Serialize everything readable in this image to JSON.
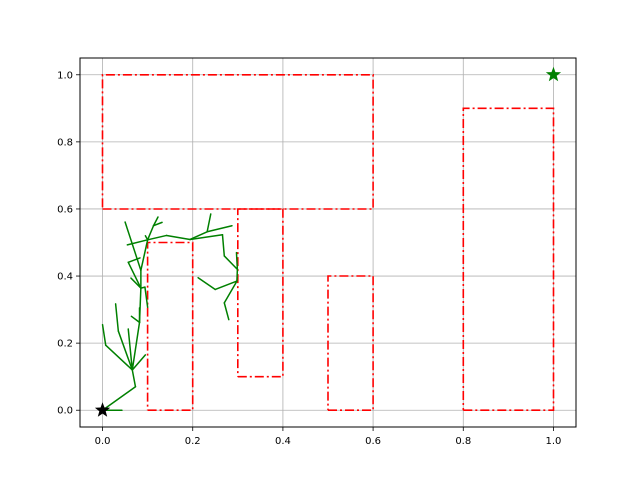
{
  "chart_data": {
    "type": "line",
    "title": "",
    "xlabel": "",
    "ylabel": "",
    "xlim": [
      -0.05,
      1.05
    ],
    "ylim": [
      -0.05,
      1.05
    ],
    "grid": true,
    "x_ticks": [
      "0.0",
      "0.2",
      "0.4",
      "0.6",
      "0.8",
      "1.0"
    ],
    "y_ticks": [
      "0.0",
      "0.2",
      "0.4",
      "0.6",
      "0.8",
      "1.0"
    ],
    "x_tick_values": [
      0,
      0.2,
      0.4,
      0.6,
      0.8,
      1.0
    ],
    "y_tick_values": [
      0,
      0.2,
      0.4,
      0.6,
      0.8,
      1.0
    ],
    "obstacle_color": "#ff0000",
    "tree_color": "#008000",
    "start_color": "#000000",
    "goal_color": "#008000",
    "start": [
      0.0,
      0.0
    ],
    "goal": [
      1.0,
      1.0
    ],
    "obstacles": [
      [
        [
          0.0,
          0.6
        ],
        [
          0.6,
          0.6
        ],
        [
          0.6,
          1.0
        ],
        [
          0.0,
          1.0
        ],
        [
          0.0,
          0.6
        ]
      ],
      [
        [
          0.1,
          0.0
        ],
        [
          0.2,
          0.0
        ],
        [
          0.2,
          0.5
        ],
        [
          0.1,
          0.5
        ],
        [
          0.1,
          0.0
        ]
      ],
      [
        [
          0.3,
          0.1
        ],
        [
          0.4,
          0.1
        ],
        [
          0.4,
          0.6
        ],
        [
          0.3,
          0.6
        ],
        [
          0.3,
          0.1
        ]
      ],
      [
        [
          0.5,
          0.0
        ],
        [
          0.6,
          0.0
        ],
        [
          0.6,
          0.4
        ],
        [
          0.5,
          0.4
        ],
        [
          0.5,
          0.0
        ]
      ],
      [
        [
          0.8,
          0.0
        ],
        [
          1.0,
          0.0
        ],
        [
          1.0,
          0.9
        ],
        [
          0.8,
          0.9
        ],
        [
          0.8,
          0.0
        ]
      ]
    ],
    "tree_edges": [
      [
        [
          0.0,
          0.0
        ],
        [
          0.043,
          0.0
        ]
      ],
      [
        [
          0.0,
          0.0
        ],
        [
          0.073,
          0.07
        ]
      ],
      [
        [
          0.073,
          0.07
        ],
        [
          0.066,
          0.12
        ]
      ],
      [
        [
          0.066,
          0.12
        ],
        [
          0.007,
          0.194
        ]
      ],
      [
        [
          0.007,
          0.194
        ],
        [
          0.0,
          0.255
        ]
      ],
      [
        [
          0.066,
          0.12
        ],
        [
          0.035,
          0.236
        ]
      ],
      [
        [
          0.035,
          0.236
        ],
        [
          0.029,
          0.317
        ]
      ],
      [
        [
          0.066,
          0.12
        ],
        [
          0.095,
          0.165
        ]
      ],
      [
        [
          0.066,
          0.12
        ],
        [
          0.057,
          0.242
        ]
      ],
      [
        [
          0.066,
          0.12
        ],
        [
          0.082,
          0.262
        ]
      ],
      [
        [
          0.082,
          0.262
        ],
        [
          0.064,
          0.28
        ]
      ],
      [
        [
          0.082,
          0.262
        ],
        [
          0.082,
          0.305
        ]
      ],
      [
        [
          0.082,
          0.262
        ],
        [
          0.085,
          0.364
        ]
      ],
      [
        [
          0.085,
          0.364
        ],
        [
          0.063,
          0.394
        ]
      ],
      [
        [
          0.085,
          0.364
        ],
        [
          0.094,
          0.367
        ]
      ],
      [
        [
          0.094,
          0.367
        ],
        [
          0.1,
          0.307
        ]
      ],
      [
        [
          0.085,
          0.364
        ],
        [
          0.057,
          0.441
        ]
      ],
      [
        [
          0.057,
          0.441
        ],
        [
          0.083,
          0.454
        ]
      ],
      [
        [
          0.085,
          0.364
        ],
        [
          0.085,
          0.417
        ]
      ],
      [
        [
          0.085,
          0.417
        ],
        [
          0.05,
          0.561
        ]
      ],
      [
        [
          0.085,
          0.417
        ],
        [
          0.1,
          0.508
        ]
      ],
      [
        [
          0.1,
          0.508
        ],
        [
          0.055,
          0.493
        ]
      ],
      [
        [
          0.1,
          0.508
        ],
        [
          0.095,
          0.52
        ]
      ],
      [
        [
          0.1,
          0.508
        ],
        [
          0.113,
          0.55
        ]
      ],
      [
        [
          0.113,
          0.55
        ],
        [
          0.132,
          0.56
        ]
      ],
      [
        [
          0.113,
          0.55
        ],
        [
          0.123,
          0.576
        ]
      ],
      [
        [
          0.1,
          0.508
        ],
        [
          0.142,
          0.521
        ]
      ],
      [
        [
          0.142,
          0.521
        ],
        [
          0.194,
          0.509
        ]
      ],
      [
        [
          0.194,
          0.509
        ],
        [
          0.232,
          0.532
        ]
      ],
      [
        [
          0.232,
          0.532
        ],
        [
          0.24,
          0.585
        ]
      ],
      [
        [
          0.232,
          0.532
        ],
        [
          0.287,
          0.55
        ]
      ],
      [
        [
          0.194,
          0.509
        ],
        [
          0.266,
          0.523
        ]
      ],
      [
        [
          0.266,
          0.523
        ],
        [
          0.27,
          0.46
        ]
      ],
      [
        [
          0.27,
          0.46
        ],
        [
          0.299,
          0.42
        ]
      ],
      [
        [
          0.299,
          0.42
        ],
        [
          0.297,
          0.47
        ]
      ],
      [
        [
          0.299,
          0.42
        ],
        [
          0.298,
          0.385
        ]
      ],
      [
        [
          0.298,
          0.385
        ],
        [
          0.25,
          0.36
        ]
      ],
      [
        [
          0.25,
          0.36
        ],
        [
          0.212,
          0.395
        ]
      ],
      [
        [
          0.298,
          0.385
        ],
        [
          0.27,
          0.32
        ]
      ],
      [
        [
          0.27,
          0.32
        ],
        [
          0.28,
          0.27
        ]
      ]
    ]
  }
}
